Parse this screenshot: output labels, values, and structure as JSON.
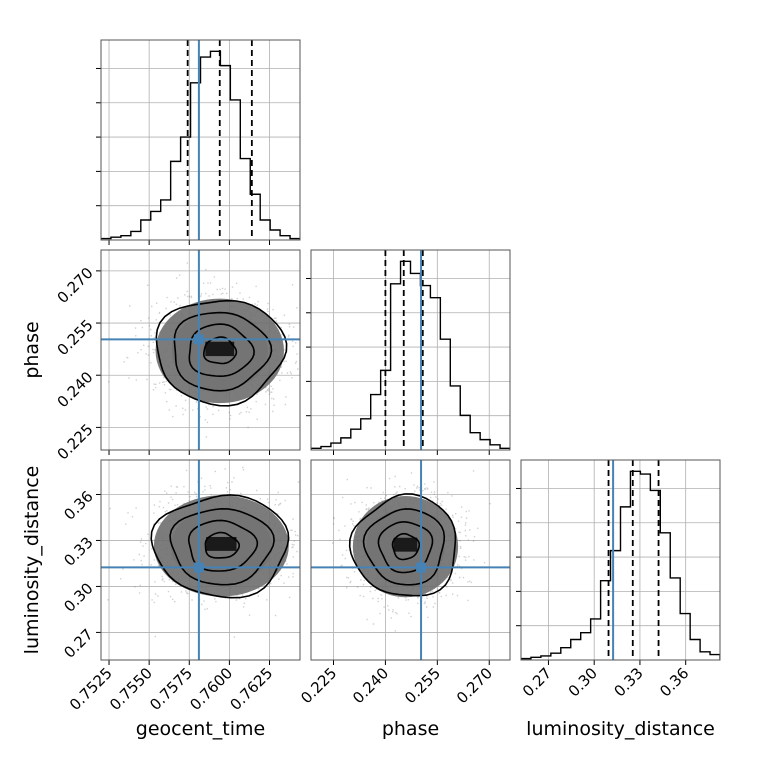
{
  "chart_data": {
    "type": "corner",
    "grid": true,
    "colors": {
      "truth": "#4682b4",
      "hist": "#000000",
      "scatter": "#7a7a7a",
      "grid": "#b0b0b0"
    },
    "parameters": [
      {
        "name": "geocent_time",
        "label": "geocent_time",
        "range": [
          0.752,
          0.7644
        ],
        "ticks": [
          0.7525,
          0.755,
          0.7575,
          0.76,
          0.7625
        ],
        "tick_labels": [
          "0.7525",
          "0.7550",
          "0.7575",
          "0.7600",
          "0.7625"
        ],
        "truth": 0.7581,
        "quantiles": [
          0.7574,
          0.7594,
          0.7614
        ],
        "hist_counts": [
          1,
          2,
          3,
          6,
          14,
          20,
          28,
          55,
          72,
          110,
          128,
          132,
          122,
          98,
          57,
          32,
          14,
          7,
          3,
          1
        ]
      },
      {
        "name": "phase",
        "label": "phase",
        "range": [
          0.2185,
          0.276
        ],
        "ticks": [
          0.225,
          0.24,
          0.255,
          0.27
        ],
        "tick_labels": [
          "0.225",
          "0.240",
          "0.255",
          "0.270"
        ],
        "truth": 0.2503,
        "quantiles": [
          0.24,
          0.2453,
          0.2508
        ],
        "hist_counts": [
          1,
          2,
          4,
          7,
          12,
          18,
          32,
          46,
          96,
          109,
          102,
          95,
          88,
          64,
          37,
          20,
          10,
          6,
          3,
          1
        ]
      },
      {
        "name": "luminosity_distance",
        "label": "luminosity_distance",
        "range": [
          0.252,
          0.3825
        ],
        "ticks": [
          0.27,
          0.3,
          0.33,
          0.36
        ],
        "tick_labels": [
          "0.27",
          "0.30",
          "0.33",
          "0.36"
        ],
        "truth": 0.3124,
        "quantiles": [
          0.3094,
          0.3253,
          0.3422
        ],
        "hist_counts": [
          1,
          2,
          3,
          5,
          9,
          15,
          20,
          30,
          58,
          80,
          112,
          138,
          136,
          124,
          93,
          60,
          34,
          15,
          6,
          4
        ]
      }
    ],
    "pairs": [
      {
        "x": "geocent_time",
        "y": "phase",
        "center": [
          0.7594,
          0.247
        ],
        "sd": [
          0.002,
          0.0075
        ]
      },
      {
        "x": "geocent_time",
        "y": "luminosity_distance",
        "center": [
          0.7595,
          0.3265
        ],
        "sd": [
          0.0021,
          0.0165
        ]
      },
      {
        "x": "phase",
        "y": "luminosity_distance",
        "center": [
          0.2458,
          0.326
        ],
        "sd": [
          0.0076,
          0.0165
        ]
      }
    ],
    "contour_levels": [
      0.118,
      0.393,
      0.675,
      0.865
    ]
  }
}
